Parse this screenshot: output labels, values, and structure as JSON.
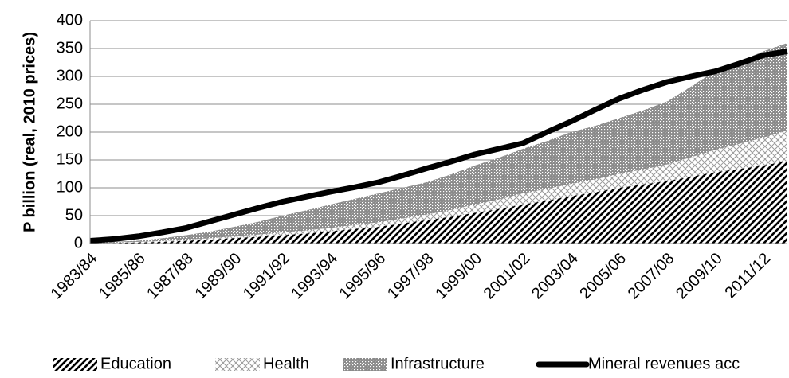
{
  "chart_data": {
    "type": "stacked-area-line",
    "y_label": "P billion (real, 2010 prices)",
    "categories": [
      "1983/84",
      null,
      "1985/86",
      null,
      "1987/88",
      null,
      "1989/90",
      null,
      "1991/92",
      null,
      "1993/94",
      null,
      "1995/96",
      null,
      "1997/98",
      null,
      "1999/00",
      null,
      "2001/02",
      null,
      "2003/04",
      null,
      "2005/06",
      null,
      "2007/08",
      null,
      "2009/10",
      null,
      "2011/12",
      null
    ],
    "series": [
      {
        "name": "Education",
        "color": "#000000",
        "kind": "area",
        "pattern": "diagonal",
        "values": [
          0,
          1,
          2,
          3,
          5,
          7,
          10,
          12,
          15,
          18,
          22,
          26,
          30,
          36,
          42,
          48,
          55,
          62,
          70,
          77,
          85,
          92,
          100,
          106,
          112,
          120,
          128,
          134,
          140,
          148
        ]
      },
      {
        "name": "Health",
        "color": "#9a9a9a",
        "kind": "area",
        "pattern": "cross",
        "values": [
          0,
          0.5,
          1,
          1.5,
          2,
          2.5,
          3,
          4,
          5,
          5.5,
          6,
          7,
          8,
          9,
          10,
          12,
          15,
          17,
          20,
          21,
          22,
          23,
          25,
          27,
          30,
          35,
          40,
          45,
          50,
          55
        ]
      },
      {
        "name": "Infrastructure",
        "color": "#8a8a8a",
        "kind": "area",
        "pattern": "dots",
        "values": [
          1,
          1.5,
          2,
          5,
          8,
          12,
          17,
          23,
          30,
          36,
          42,
          47,
          52,
          55,
          58,
          64,
          70,
          75,
          80,
          86,
          93,
          96,
          100,
          106,
          113,
          127,
          142,
          148,
          155,
          157
        ]
      },
      {
        "name": "Mineral revenues acc",
        "color": "#000000",
        "kind": "line",
        "values": [
          5,
          8,
          13,
          20,
          28,
          40,
          52,
          64,
          75,
          84,
          93,
          101,
          110,
          122,
          135,
          147,
          160,
          170,
          180,
          200,
          219,
          240,
          260,
          276,
          290,
          300,
          309,
          323,
          338,
          345
        ]
      }
    ],
    "ylim": [
      0,
      400
    ],
    "yticks": [
      0,
      50,
      100,
      150,
      200,
      250,
      300,
      350,
      400
    ],
    "grid": true,
    "legend": "bottom"
  }
}
